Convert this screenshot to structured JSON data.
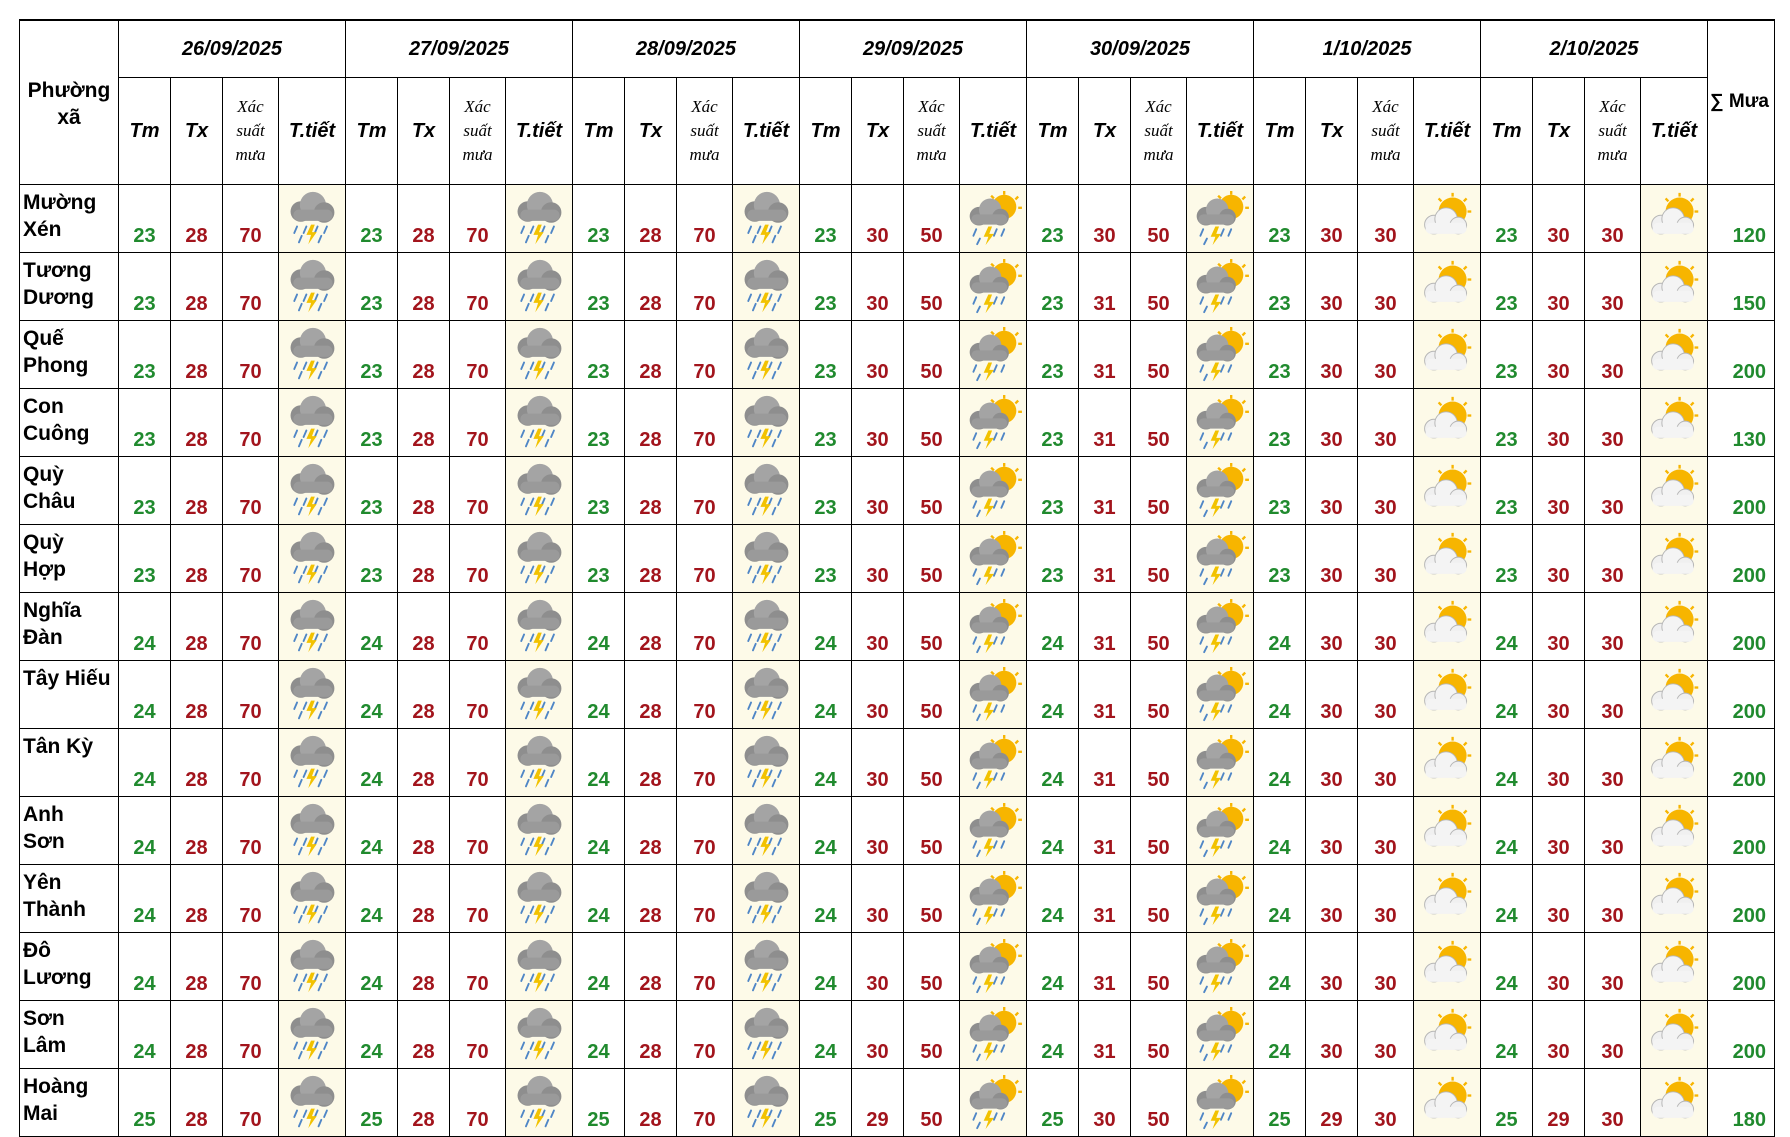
{
  "table": {
    "location_header": "Phường xã",
    "sum_header": "∑ Mưa",
    "sub_headers": {
      "tm": "Tm",
      "tx": "Tx",
      "rain_chance": [
        "Xác",
        "suất",
        "mưa"
      ],
      "weather": "T.tiết"
    },
    "dates": [
      {
        "label": "26/09/2025",
        "icon": "rain-thunder-cloud-icon"
      },
      {
        "label": "27/09/2025",
        "icon": "rain-thunder-cloud-icon"
      },
      {
        "label": "28/09/2025",
        "icon": "rain-thunder-cloud-icon"
      },
      {
        "label": "29/09/2025",
        "icon": "sun-cloud-thunder-rain-icon"
      },
      {
        "label": "30/09/2025",
        "icon": "sun-cloud-thunder-rain-icon"
      },
      {
        "label": "1/10/2025",
        "icon": "sun-behind-cloud-icon"
      },
      {
        "label": "2/10/2025",
        "icon": "sun-behind-cloud-icon"
      }
    ],
    "rows": [
      {
        "name": [
          "Mường",
          "Xén"
        ],
        "days": [
          [
            "23",
            "28",
            "70"
          ],
          [
            "23",
            "28",
            "70"
          ],
          [
            "23",
            "28",
            "70"
          ],
          [
            "23",
            "30",
            "50"
          ],
          [
            "23",
            "30",
            "50"
          ],
          [
            "23",
            "30",
            "30"
          ],
          [
            "23",
            "30",
            "30"
          ]
        ],
        "sum": "120"
      },
      {
        "name": [
          "Tương",
          "Dương"
        ],
        "days": [
          [
            "23",
            "28",
            "70"
          ],
          [
            "23",
            "28",
            "70"
          ],
          [
            "23",
            "28",
            "70"
          ],
          [
            "23",
            "30",
            "50"
          ],
          [
            "23",
            "31",
            "50"
          ],
          [
            "23",
            "30",
            "30"
          ],
          [
            "23",
            "30",
            "30"
          ]
        ],
        "sum": "150"
      },
      {
        "name": [
          "Quế",
          "Phong"
        ],
        "days": [
          [
            "23",
            "28",
            "70"
          ],
          [
            "23",
            "28",
            "70"
          ],
          [
            "23",
            "28",
            "70"
          ],
          [
            "23",
            "30",
            "50"
          ],
          [
            "23",
            "31",
            "50"
          ],
          [
            "23",
            "30",
            "30"
          ],
          [
            "23",
            "30",
            "30"
          ]
        ],
        "sum": "200"
      },
      {
        "name": [
          "Con",
          "Cuông"
        ],
        "days": [
          [
            "23",
            "28",
            "70"
          ],
          [
            "23",
            "28",
            "70"
          ],
          [
            "23",
            "28",
            "70"
          ],
          [
            "23",
            "30",
            "50"
          ],
          [
            "23",
            "31",
            "50"
          ],
          [
            "23",
            "30",
            "30"
          ],
          [
            "23",
            "30",
            "30"
          ]
        ],
        "sum": "130"
      },
      {
        "name": [
          "Quỳ",
          "Châu"
        ],
        "days": [
          [
            "23",
            "28",
            "70"
          ],
          [
            "23",
            "28",
            "70"
          ],
          [
            "23",
            "28",
            "70"
          ],
          [
            "23",
            "30",
            "50"
          ],
          [
            "23",
            "31",
            "50"
          ],
          [
            "23",
            "30",
            "30"
          ],
          [
            "23",
            "30",
            "30"
          ]
        ],
        "sum": "200"
      },
      {
        "name": [
          "Quỳ",
          "Hợp"
        ],
        "days": [
          [
            "23",
            "28",
            "70"
          ],
          [
            "23",
            "28",
            "70"
          ],
          [
            "23",
            "28",
            "70"
          ],
          [
            "23",
            "30",
            "50"
          ],
          [
            "23",
            "31",
            "50"
          ],
          [
            "23",
            "30",
            "30"
          ],
          [
            "23",
            "30",
            "30"
          ]
        ],
        "sum": "200"
      },
      {
        "name": [
          "Nghĩa",
          "Đàn"
        ],
        "days": [
          [
            "24",
            "28",
            "70"
          ],
          [
            "24",
            "28",
            "70"
          ],
          [
            "24",
            "28",
            "70"
          ],
          [
            "24",
            "30",
            "50"
          ],
          [
            "24",
            "31",
            "50"
          ],
          [
            "24",
            "30",
            "30"
          ],
          [
            "24",
            "30",
            "30"
          ]
        ],
        "sum": "200"
      },
      {
        "name": [
          "Tây Hiếu",
          ""
        ],
        "days": [
          [
            "24",
            "28",
            "70"
          ],
          [
            "24",
            "28",
            "70"
          ],
          [
            "24",
            "28",
            "70"
          ],
          [
            "24",
            "30",
            "50"
          ],
          [
            "24",
            "31",
            "50"
          ],
          [
            "24",
            "30",
            "30"
          ],
          [
            "24",
            "30",
            "30"
          ]
        ],
        "sum": "200"
      },
      {
        "name": [
          "Tân Kỳ",
          ""
        ],
        "days": [
          [
            "24",
            "28",
            "70"
          ],
          [
            "24",
            "28",
            "70"
          ],
          [
            "24",
            "28",
            "70"
          ],
          [
            "24",
            "30",
            "50"
          ],
          [
            "24",
            "31",
            "50"
          ],
          [
            "24",
            "30",
            "30"
          ],
          [
            "24",
            "30",
            "30"
          ]
        ],
        "sum": "200"
      },
      {
        "name": [
          "Anh",
          "Sơn"
        ],
        "days": [
          [
            "24",
            "28",
            "70"
          ],
          [
            "24",
            "28",
            "70"
          ],
          [
            "24",
            "28",
            "70"
          ],
          [
            "24",
            "30",
            "50"
          ],
          [
            "24",
            "31",
            "50"
          ],
          [
            "24",
            "30",
            "30"
          ],
          [
            "24",
            "30",
            "30"
          ]
        ],
        "sum": "200"
      },
      {
        "name": [
          "Yên",
          "Thành"
        ],
        "days": [
          [
            "24",
            "28",
            "70"
          ],
          [
            "24",
            "28",
            "70"
          ],
          [
            "24",
            "28",
            "70"
          ],
          [
            "24",
            "30",
            "50"
          ],
          [
            "24",
            "31",
            "50"
          ],
          [
            "24",
            "30",
            "30"
          ],
          [
            "24",
            "30",
            "30"
          ]
        ],
        "sum": "200"
      },
      {
        "name": [
          "Đô",
          "Lương"
        ],
        "days": [
          [
            "24",
            "28",
            "70"
          ],
          [
            "24",
            "28",
            "70"
          ],
          [
            "24",
            "28",
            "70"
          ],
          [
            "24",
            "30",
            "50"
          ],
          [
            "24",
            "31",
            "50"
          ],
          [
            "24",
            "30",
            "30"
          ],
          [
            "24",
            "30",
            "30"
          ]
        ],
        "sum": "200"
      },
      {
        "name": [
          "Sơn",
          "Lâm"
        ],
        "days": [
          [
            "24",
            "28",
            "70"
          ],
          [
            "24",
            "28",
            "70"
          ],
          [
            "24",
            "28",
            "70"
          ],
          [
            "24",
            "30",
            "50"
          ],
          [
            "24",
            "31",
            "50"
          ],
          [
            "24",
            "30",
            "30"
          ],
          [
            "24",
            "30",
            "30"
          ]
        ],
        "sum": "200"
      },
      {
        "name": [
          "Hoàng",
          "Mai"
        ],
        "days": [
          [
            "25",
            "28",
            "70"
          ],
          [
            "25",
            "28",
            "70"
          ],
          [
            "25",
            "28",
            "70"
          ],
          [
            "25",
            "29",
            "50"
          ],
          [
            "25",
            "30",
            "50"
          ],
          [
            "25",
            "29",
            "30"
          ],
          [
            "25",
            "29",
            "30"
          ]
        ],
        "sum": "180"
      }
    ]
  },
  "colors": {
    "tm": "#208a2e",
    "tx": "#a2141c",
    "rain_chance": "#a2141c",
    "sum": "#208a2e",
    "icon_background": "#fdfae8"
  }
}
